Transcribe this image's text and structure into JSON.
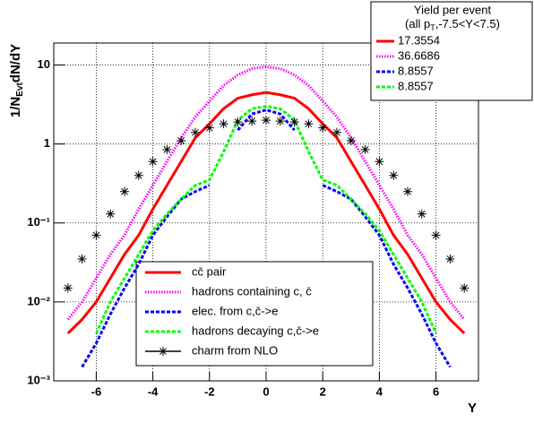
{
  "chart_data": {
    "type": "line",
    "log_y": true,
    "grid": true,
    "xlabel": "Y",
    "ylabel": [
      "1/N",
      "Evt",
      "dN/dY"
    ],
    "legend_title": [
      "Yield per event",
      [
        "(all p",
        "T",
        ",-7.5<Y<7.5)"
      ]
    ],
    "xlim": [
      -7.5,
      7.5
    ],
    "ylim": [
      0.001,
      19
    ],
    "xticks": [
      -6,
      -4,
      -2,
      0,
      2,
      4,
      6
    ],
    "yticks": [
      {
        "value": 0.001,
        "label": "10⁻³"
      },
      {
        "value": 0.01,
        "label": "10⁻²"
      },
      {
        "value": 0.1,
        "label": "10⁻¹"
      },
      1,
      10
    ],
    "x": [
      -7,
      -6.5,
      -6,
      -5.5,
      -5,
      -4.5,
      -4,
      -3.5,
      -3,
      -2.5,
      -2,
      -1.5,
      -1,
      -0.5,
      0,
      0.5,
      1,
      1.5,
      2,
      2.5,
      3,
      3.5,
      4,
      4.5,
      5,
      5.5,
      6,
      6.5,
      7
    ],
    "series": [
      {
        "name": "cc̄ pair",
        "yield": "17.3554",
        "color": "#ff0000",
        "style": "solid",
        "values": [
          0.004,
          0.006,
          0.01,
          0.02,
          0.04,
          0.07,
          0.15,
          0.3,
          0.6,
          1.2,
          1.8,
          2.8,
          3.8,
          4.2,
          4.5,
          4.2,
          3.8,
          2.8,
          1.8,
          1.2,
          0.6,
          0.3,
          0.15,
          0.07,
          0.04,
          0.02,
          0.01,
          0.006,
          0.004
        ]
      },
      {
        "name": "hadrons containing c, c̄",
        "yield": "36.6686",
        "color": "#ff00ff",
        "style": "dotted",
        "values": [
          0.006,
          0.01,
          0.02,
          0.04,
          0.07,
          0.15,
          0.3,
          0.6,
          1.2,
          2.2,
          3.5,
          5.5,
          7.5,
          9,
          9.5,
          9,
          7.5,
          5.5,
          3.5,
          2.2,
          1.2,
          0.6,
          0.3,
          0.15,
          0.07,
          0.04,
          0.02,
          0.01,
          0.006
        ]
      },
      {
        "name": "elec. from c,c̄->e",
        "yield": "8.8557",
        "color": "#0000ff",
        "style": "dashed",
        "values": [
          null,
          0.0015,
          0.003,
          0.007,
          0.015,
          0.03,
          0.07,
          0.12,
          0.2,
          0.25,
          0.3,
          null,
          1.5,
          2.4,
          2.7,
          2.4,
          1.5,
          null,
          0.3,
          0.25,
          0.2,
          0.12,
          0.07,
          0.03,
          0.015,
          0.007,
          0.003,
          0.0015,
          null
        ]
      },
      {
        "name": "hadrons decaying c,c̄->e",
        "yield": "8.8557",
        "color": "#00ff00",
        "style": "dashed",
        "values": [
          null,
          null,
          0.004,
          0.01,
          0.02,
          0.04,
          0.08,
          0.13,
          0.2,
          0.3,
          0.35,
          0.8,
          2,
          2.8,
          3,
          2.8,
          2,
          0.8,
          0.35,
          0.3,
          0.2,
          0.13,
          0.08,
          0.04,
          0.02,
          0.01,
          0.004,
          null,
          null
        ]
      },
      {
        "name": "charm from NLO",
        "color": "#000000",
        "style": "star",
        "values": [
          0.015,
          0.035,
          0.07,
          0.13,
          0.25,
          0.4,
          0.6,
          0.85,
          1.1,
          1.4,
          1.6,
          1.8,
          1.9,
          1.95,
          2,
          1.95,
          1.9,
          1.8,
          1.6,
          1.4,
          1.1,
          0.85,
          0.6,
          0.4,
          0.25,
          0.13,
          0.07,
          0.035,
          0.015
        ]
      }
    ]
  }
}
